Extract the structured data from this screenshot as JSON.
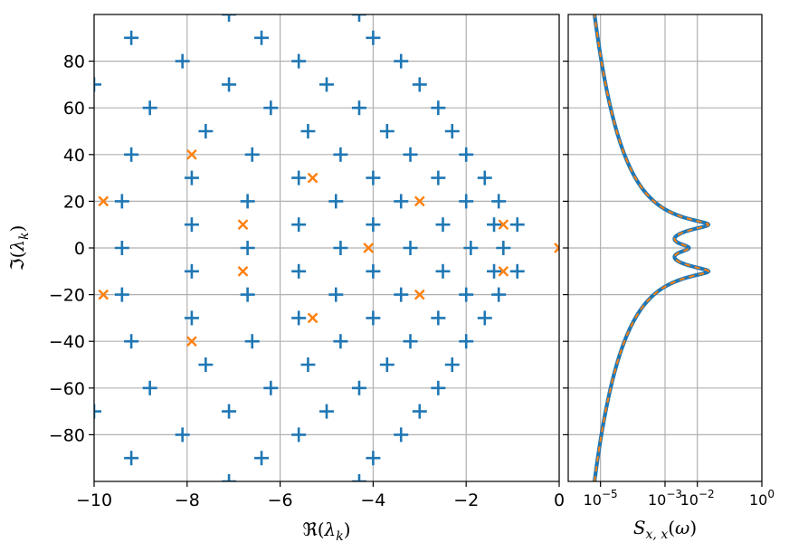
{
  "chart_data": [
    {
      "type": "scatter",
      "title": "",
      "xlabel": "ℜ(λ_k)",
      "ylabel": "ℑ(λ_k)",
      "xlim": [
        -10,
        0
      ],
      "ylim": [
        -100,
        100
      ],
      "xticks": [
        -10,
        -8,
        -6,
        -4,
        -2,
        0
      ],
      "xtick_labels": [
        "−10",
        "−8",
        "−6",
        "−4",
        "−2",
        "0"
      ],
      "yticks": [
        -80,
        -60,
        -40,
        -20,
        0,
        20,
        40,
        60,
        80
      ],
      "ytick_labels": [
        "−80",
        "−60",
        "−40",
        "−20",
        "0",
        "20",
        "40",
        "60",
        "80"
      ],
      "grid": true,
      "series": [
        {
          "marker": "plus",
          "color": "#1f77b4",
          "points": [
            [
              -7.1,
              100
            ],
            [
              -4.3,
              100
            ],
            [
              -9.2,
              90
            ],
            [
              -6.4,
              90
            ],
            [
              -4.0,
              90
            ],
            [
              -8.1,
              80
            ],
            [
              -5.6,
              80
            ],
            [
              -3.4,
              80
            ],
            [
              -10.0,
              70
            ],
            [
              -7.1,
              70
            ],
            [
              -5.0,
              70
            ],
            [
              -3.0,
              70
            ],
            [
              -8.8,
              60
            ],
            [
              -6.2,
              60
            ],
            [
              -4.3,
              60
            ],
            [
              -2.6,
              60
            ],
            [
              -7.6,
              50
            ],
            [
              -5.4,
              50
            ],
            [
              -3.7,
              50
            ],
            [
              -2.3,
              50
            ],
            [
              -9.2,
              40
            ],
            [
              -6.6,
              40
            ],
            [
              -4.7,
              40
            ],
            [
              -3.2,
              40
            ],
            [
              -2.0,
              40
            ],
            [
              -7.9,
              30
            ],
            [
              -5.6,
              30
            ],
            [
              -4.0,
              30
            ],
            [
              -2.6,
              30
            ],
            [
              -1.6,
              30
            ],
            [
              -9.4,
              20
            ],
            [
              -6.7,
              20
            ],
            [
              -4.8,
              20
            ],
            [
              -3.4,
              20
            ],
            [
              -2.0,
              20
            ],
            [
              -1.3,
              20
            ],
            [
              -7.9,
              10
            ],
            [
              -5.6,
              10
            ],
            [
              -4.0,
              10
            ],
            [
              -2.5,
              10
            ],
            [
              -1.4,
              10
            ],
            [
              -0.9,
              10
            ],
            [
              -9.4,
              0
            ],
            [
              -6.7,
              0
            ],
            [
              -4.7,
              0
            ],
            [
              -3.2,
              0
            ],
            [
              -1.9,
              0
            ],
            [
              -1.2,
              0
            ],
            [
              -7.9,
              -10
            ],
            [
              -5.6,
              -10
            ],
            [
              -4.0,
              -10
            ],
            [
              -2.5,
              -10
            ],
            [
              -1.4,
              -10
            ],
            [
              -0.9,
              -10
            ],
            [
              -9.4,
              -20
            ],
            [
              -6.7,
              -20
            ],
            [
              -4.8,
              -20
            ],
            [
              -3.4,
              -20
            ],
            [
              -2.0,
              -20
            ],
            [
              -1.3,
              -20
            ],
            [
              -7.9,
              -30
            ],
            [
              -5.6,
              -30
            ],
            [
              -4.0,
              -30
            ],
            [
              -2.6,
              -30
            ],
            [
              -1.6,
              -30
            ],
            [
              -9.2,
              -40
            ],
            [
              -6.6,
              -40
            ],
            [
              -4.7,
              -40
            ],
            [
              -3.2,
              -40
            ],
            [
              -2.0,
              -40
            ],
            [
              -7.6,
              -50
            ],
            [
              -5.4,
              -50
            ],
            [
              -3.7,
              -50
            ],
            [
              -2.3,
              -50
            ],
            [
              -8.8,
              -60
            ],
            [
              -6.2,
              -60
            ],
            [
              -4.3,
              -60
            ],
            [
              -2.6,
              -60
            ],
            [
              -10.0,
              -70
            ],
            [
              -7.1,
              -70
            ],
            [
              -5.0,
              -70
            ],
            [
              -3.0,
              -70
            ],
            [
              -8.1,
              -80
            ],
            [
              -5.6,
              -80
            ],
            [
              -3.4,
              -80
            ],
            [
              -9.2,
              -90
            ],
            [
              -6.4,
              -90
            ],
            [
              -4.0,
              -90
            ],
            [
              -7.1,
              -100
            ],
            [
              -4.3,
              -100
            ]
          ]
        },
        {
          "marker": "x",
          "color": "#ff7f0e",
          "points": [
            [
              -7.9,
              40
            ],
            [
              -5.3,
              30
            ],
            [
              -9.8,
              20
            ],
            [
              -3.0,
              20
            ],
            [
              -6.8,
              10
            ],
            [
              -1.2,
              10
            ],
            [
              -4.1,
              0
            ],
            [
              0.0,
              0
            ],
            [
              -6.8,
              -10
            ],
            [
              -1.2,
              -10
            ],
            [
              -9.8,
              -20
            ],
            [
              -3.0,
              -20
            ],
            [
              -5.3,
              -30
            ],
            [
              -7.9,
              -40
            ]
          ]
        }
      ]
    },
    {
      "type": "line",
      "title": "",
      "xlabel": "S_{x,x}(ω)",
      "ylabel": "",
      "xscale": "log",
      "xlim": [
        1e-06,
        1
      ],
      "ylim": [
        -100,
        100
      ],
      "xticks": [
        1e-05,
        0.001,
        0.01,
        1
      ],
      "xtick_bases": [
        "10",
        "10",
        "10",
        "10"
      ],
      "xtick_exps": [
        "−5",
        "−3",
        "−2",
        "0"
      ],
      "grid": true,
      "resonance_frequency": 10,
      "series": [
        {
          "style": "solid",
          "color": "#1f77b4",
          "curve": [
            [
              -100,
              1.2e-05
            ],
            [
              -80,
              1.9e-05
            ],
            [
              -60,
              3.4e-05
            ],
            [
              -40,
              8e-05
            ],
            [
              -20,
              0.0004
            ],
            [
              -10,
              0.023
            ],
            [
              0,
              0.0003
            ],
            [
              10,
              0.023
            ],
            [
              20,
              0.0004
            ],
            [
              40,
              8e-05
            ],
            [
              60,
              3.4e-05
            ],
            [
              80,
              1.9e-05
            ],
            [
              100,
              1.2e-05
            ]
          ]
        },
        {
          "style": "dashed",
          "color": "#ff7f0e",
          "curve": [
            [
              -100,
              1.2e-05
            ],
            [
              -80,
              1.9e-05
            ],
            [
              -60,
              3.4e-05
            ],
            [
              -40,
              8e-05
            ],
            [
              -20,
              0.0004
            ],
            [
              -10,
              0.023
            ],
            [
              0,
              0.0003
            ],
            [
              10,
              0.023
            ],
            [
              20,
              0.0004
            ],
            [
              40,
              8e-05
            ],
            [
              60,
              3.4e-05
            ],
            [
              80,
              1.9e-05
            ],
            [
              100,
              1.2e-05
            ]
          ]
        }
      ]
    }
  ]
}
